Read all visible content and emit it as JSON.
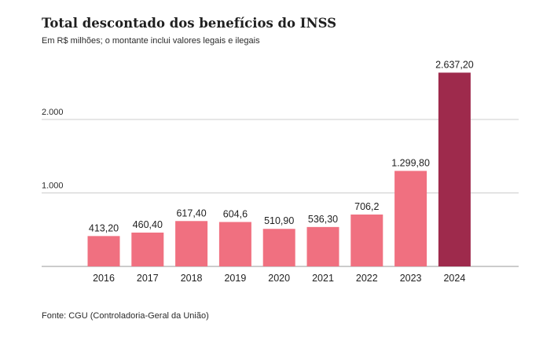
{
  "title": "Total descontado dos benefícios do INSS",
  "subtitle": "Em R$ milhões; o montante inclui valores legais e ilegais",
  "source": "Fonte: CGU (Controladoria-Geral da União)",
  "colors": {
    "bar": "#f07080",
    "highlight": "#9e2a4c",
    "grid": "#cccccc",
    "axis": "#999999"
  },
  "chart_data": {
    "type": "bar",
    "title": "Total descontado dos benefícios do INSS",
    "subtitle": "Em R$ milhões; o montante inclui valores legais e ilegais",
    "xlabel": "",
    "ylabel": "",
    "categories": [
      "2016",
      "2017",
      "2018",
      "2019",
      "2020",
      "2021",
      "2022",
      "2023",
      "2024"
    ],
    "values": [
      413.2,
      460.4,
      617.4,
      604.6,
      510.9,
      536.3,
      706.2,
      1299.8,
      2637.2
    ],
    "value_labels": [
      "413,20",
      "460,40",
      "617,40",
      "604,6",
      "510,90",
      "536,30",
      "706,2",
      "1.299,80",
      "2.637,20"
    ],
    "highlight_index": 8,
    "yticks": [
      1000,
      2000
    ],
    "ytick_labels": [
      "1.000",
      "2.000"
    ],
    "ylim": [
      0,
      2637.2
    ],
    "grid": true,
    "legend": "none"
  }
}
